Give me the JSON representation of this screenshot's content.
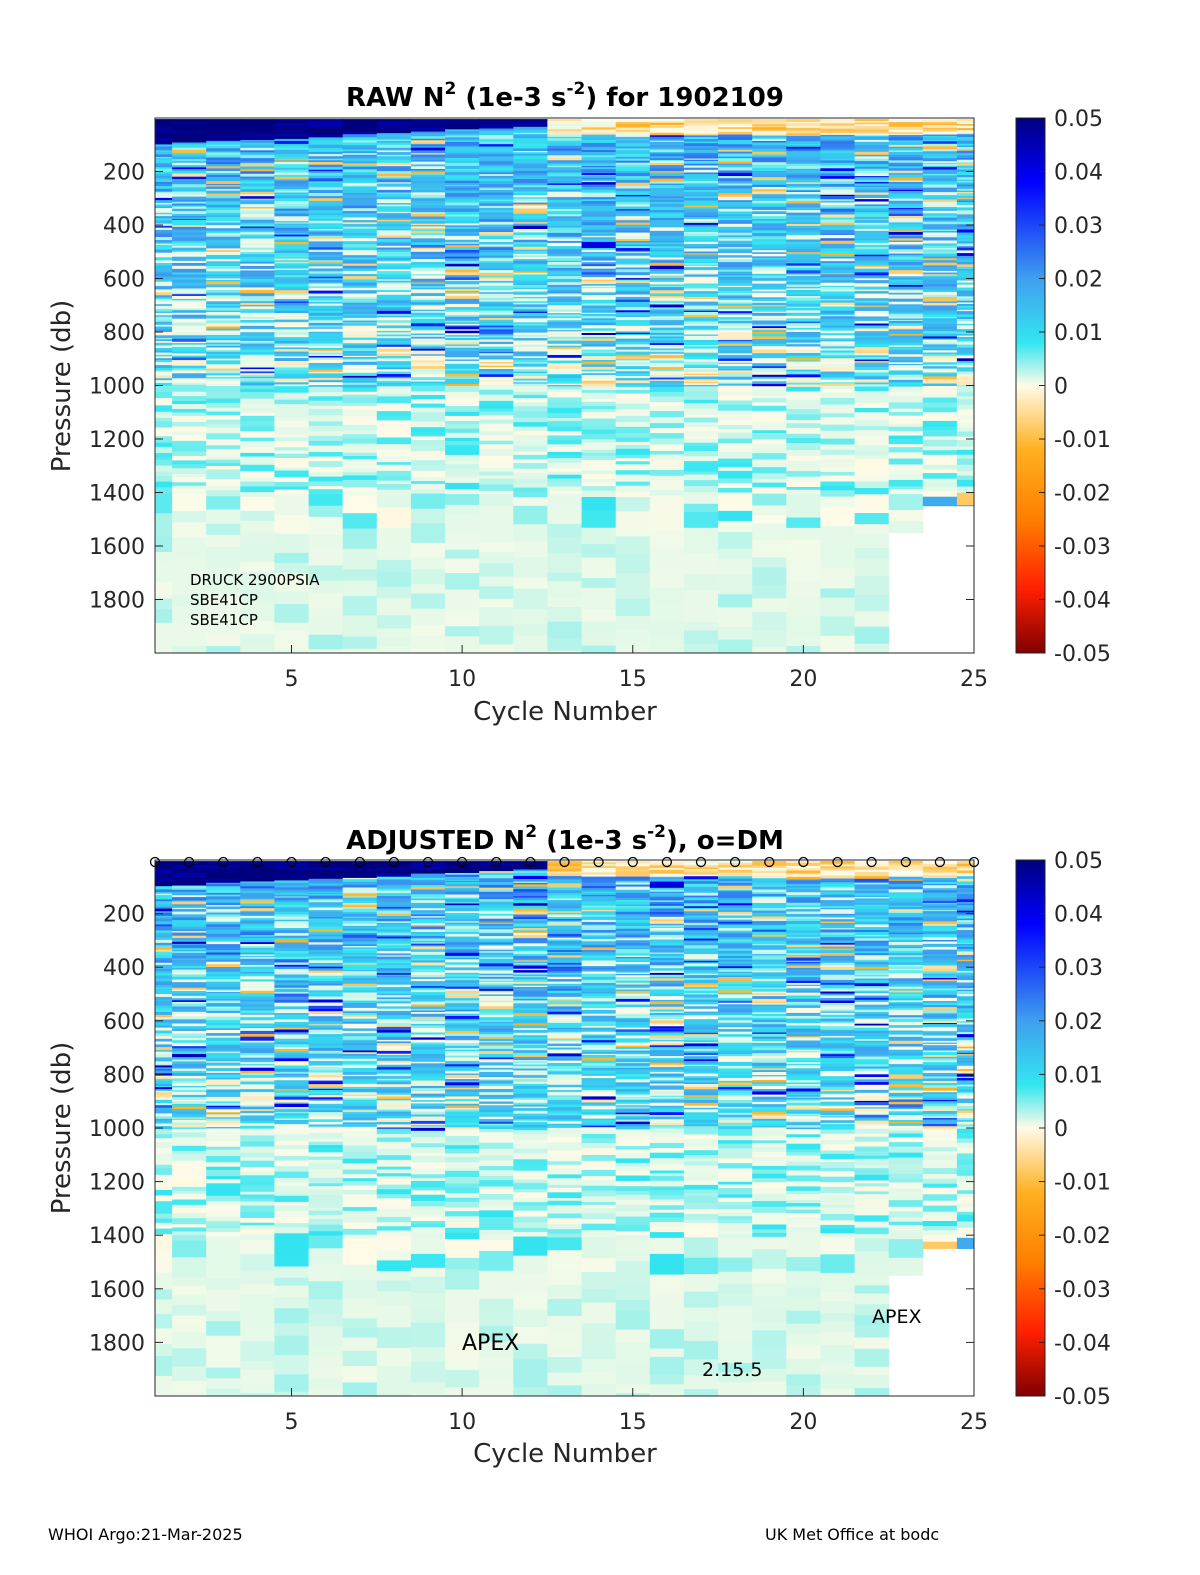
{
  "chart_data": [
    {
      "type": "heatmap",
      "title_parts": {
        "a": "RAW N",
        "sup1": "2",
        "b": " (1e-3 s",
        "sup2": "-2",
        "c": ") for 1902109"
      },
      "xlabel": "Cycle Number",
      "ylabel": "Pressure (db)",
      "xlim": [
        1,
        25
      ],
      "ylim": [
        2000,
        0
      ],
      "x_ticks": [
        "5",
        "10",
        "15",
        "20",
        "25"
      ],
      "y_ticks": [
        "200",
        "400",
        "600",
        "800",
        "1000",
        "1200",
        "1400",
        "1600",
        "1800"
      ],
      "colorbar": {
        "range": [
          -0.05,
          0.05
        ],
        "ticks": [
          "0.05",
          "0.04",
          "0.03",
          "0.02",
          "0.01",
          "0",
          "-0.01",
          "-0.02",
          "-0.03",
          "-0.04",
          "-0.05"
        ],
        "colormap": "blue-cyan-cream-orange-red"
      },
      "cycles": [
        1,
        2,
        3,
        4,
        5,
        6,
        7,
        8,
        9,
        10,
        11,
        12,
        13,
        14,
        15,
        16,
        17,
        18,
        19,
        20,
        21,
        22,
        23,
        24,
        25
      ],
      "max_pressure_per_cycle": [
        2000,
        2000,
        2000,
        2000,
        2000,
        2000,
        2000,
        2000,
        2000,
        2000,
        2000,
        2000,
        2000,
        2000,
        2000,
        2000,
        2000,
        2000,
        2000,
        2000,
        2000,
        2000,
        1550,
        1450,
        1450
      ],
      "annotations": [
        "DRUCK 2900PSIA",
        "SBE41CP",
        "SBE41CP"
      ]
    },
    {
      "type": "heatmap",
      "title_parts": {
        "a": "ADJUSTED N",
        "sup1": "2",
        "b": " (1e-3 s",
        "sup2": "-2",
        "c": "), o=DM"
      },
      "xlabel": "Cycle Number",
      "ylabel": "Pressure (db)",
      "xlim": [
        1,
        25
      ],
      "ylim": [
        2000,
        0
      ],
      "x_ticks": [
        "5",
        "10",
        "15",
        "20",
        "25"
      ],
      "y_ticks": [
        "200",
        "400",
        "600",
        "800",
        "1000",
        "1200",
        "1400",
        "1600",
        "1800"
      ],
      "colorbar": {
        "range": [
          -0.05,
          0.05
        ],
        "ticks": [
          "0.05",
          "0.04",
          "0.03",
          "0.02",
          "0.01",
          "0",
          "-0.01",
          "-0.02",
          "-0.03",
          "-0.04",
          "-0.05"
        ],
        "colormap": "blue-cyan-cream-orange-red"
      },
      "cycles": [
        1,
        2,
        3,
        4,
        5,
        6,
        7,
        8,
        9,
        10,
        11,
        12,
        13,
        14,
        15,
        16,
        17,
        18,
        19,
        20,
        21,
        22,
        23,
        24,
        25
      ],
      "max_pressure_per_cycle": [
        2000,
        2000,
        2000,
        2000,
        2000,
        2000,
        2000,
        2000,
        2000,
        2000,
        2000,
        2000,
        2000,
        2000,
        2000,
        2000,
        2000,
        2000,
        2000,
        2000,
        2000,
        2000,
        1550,
        1450,
        1450
      ],
      "dm_marker": "o",
      "dm_cycles": [
        1,
        2,
        3,
        4,
        5,
        6,
        7,
        8,
        9,
        10,
        11,
        12,
        13,
        14,
        15,
        16,
        17,
        18,
        19,
        20,
        21,
        22,
        23,
        24,
        25
      ],
      "annotations": [
        "APEX",
        "2.15.5",
        "APEX"
      ]
    }
  ],
  "footer": {
    "left": "WHOI Argo:21-Mar-2025",
    "right": "UK Met Office at bodc"
  }
}
